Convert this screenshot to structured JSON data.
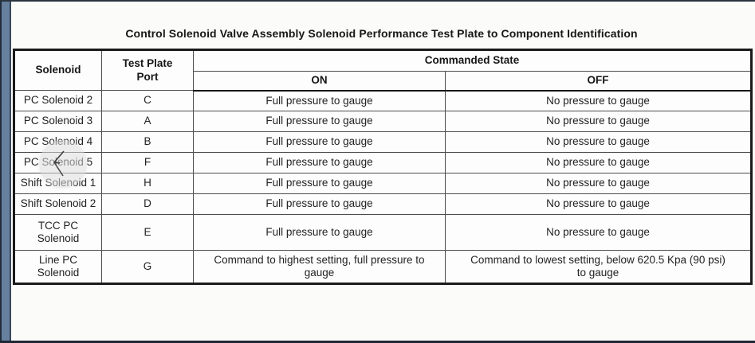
{
  "page": {
    "title": "Control Solenoid Valve Assembly Solenoid Performance Test Plate to Component Identification"
  },
  "table": {
    "header": {
      "solenoid": "Solenoid",
      "test_plate_port": "Test Plate\nPort",
      "commanded_state": "Commanded State",
      "on": "ON",
      "off": "OFF"
    },
    "rows": [
      {
        "solenoid": "PC Solenoid 2",
        "port": "C",
        "on": "Full pressure to gauge",
        "off": "No pressure to gauge"
      },
      {
        "solenoid": "PC Solenoid 3",
        "port": "A",
        "on": "Full pressure to gauge",
        "off": "No pressure to gauge"
      },
      {
        "solenoid": "PC Solenoid 4",
        "port": "B",
        "on": "Full pressure to gauge",
        "off": "No pressure to gauge"
      },
      {
        "solenoid": "PC Solenoid 5",
        "port": "F",
        "on": "Full pressure to gauge",
        "off": "No pressure to gauge"
      },
      {
        "solenoid": "Shift Solenoid 1",
        "port": "H",
        "on": "Full pressure to gauge",
        "off": "No pressure to gauge"
      },
      {
        "solenoid": "Shift Solenoid 2",
        "port": "D",
        "on": "Full pressure to gauge",
        "off": "No pressure to gauge"
      },
      {
        "solenoid": "TCC PC\nSolenoid",
        "port": "E",
        "on": "Full pressure to gauge",
        "off": "No pressure to gauge"
      },
      {
        "solenoid": "Line PC\nSolenoid",
        "port": "G",
        "on": "Command to highest setting, full pressure to\ngauge",
        "off": "Command to lowest setting, below 620.5 Kpa (90 psi)\nto gauge"
      }
    ]
  },
  "cursor": {
    "description": "mouse pointer with translucent highlight circle"
  },
  "colors": {
    "window_bar": "#66809e",
    "window_bar_edge": "#222c3a",
    "page_bg": "#f7f7f5",
    "doc_bg": "#fbfbfa",
    "table_outer_border": "#1a1a1a",
    "table_inner_border": "#4d4d4d",
    "text": "#1f1f1f"
  }
}
